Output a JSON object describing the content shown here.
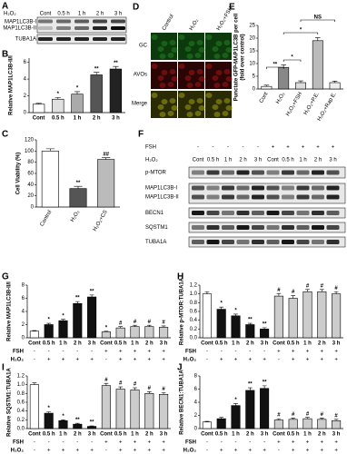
{
  "chart_data": [
    {
      "type": "bar",
      "label": "B",
      "ylabel": "Relative MAP1LC3B-II/I",
      "categories": [
        "Cont",
        "0.5 h",
        "1 h",
        "2 h",
        "3 h"
      ],
      "values": [
        1,
        1.6,
        2.2,
        4.5,
        5.2
      ],
      "errors": [
        0.1,
        0.2,
        0.3,
        0.3,
        0.3
      ],
      "annotations": [
        null,
        "*",
        "*",
        "**",
        "**"
      ],
      "colors": [
        "#ffffff",
        "#e0e0e0",
        "#aaaaaa",
        "#555555",
        "#222222"
      ],
      "ylim": [
        0,
        6.5
      ],
      "yticks": [
        0,
        2,
        4,
        6
      ]
    },
    {
      "type": "bar",
      "label": "C",
      "ylabel": "Cell Viability (%)",
      "categories": [
        "Control",
        "H₂O₂",
        "H₂O₂+CS"
      ],
      "rotate_labels": true,
      "values": [
        100,
        33,
        85
      ],
      "errors": [
        4,
        4,
        3
      ],
      "annotations": [
        null,
        "**",
        "##"
      ],
      "colors": [
        "#ffffff",
        "#555555",
        "#bbbbbb"
      ],
      "ylim": [
        0,
        120
      ],
      "yticks": [
        0,
        20,
        40,
        60,
        80,
        100,
        120
      ]
    },
    {
      "type": "bar",
      "label": "E",
      "ylabel": [
        "Punctate GFP-MAP1LC3B per cell",
        "(fold over control)"
      ],
      "categories": [
        "Cont",
        "H₂O₂",
        "H₂O₂+FSH",
        "H₂O₂+P.E.",
        "H₂O₂+Rap E."
      ],
      "rotate_labels": true,
      "values": [
        1,
        8.5,
        2.5,
        19,
        2.5
      ],
      "errors": [
        0.5,
        1,
        0.7,
        1.2,
        0.6
      ],
      "annotations": [
        null,
        null,
        null,
        null,
        null
      ],
      "brackets": [
        "**",
        "*",
        "*",
        "NS"
      ],
      "colors": [
        "#ffffff",
        "#888888",
        "#dddddd",
        "#bbbbbb",
        "#eeeeee"
      ],
      "ylim": [
        0,
        25
      ],
      "yticks": [
        0,
        5,
        10,
        15,
        20,
        25
      ]
    },
    {
      "type": "bar",
      "label": "G",
      "ylabel": "Relative MAP1LC3B-II/I",
      "categories": [
        "Cont",
        "0.5 h",
        "1 h",
        "2 h",
        "3 h",
        "Cont",
        "0.5 h",
        "1 h",
        "2 h",
        "3 h"
      ],
      "values": [
        1,
        2,
        2.6,
        5.2,
        6.2,
        0.9,
        1.5,
        1.7,
        1.7,
        1.6
      ],
      "errors": [
        0.1,
        0.2,
        0.2,
        0.3,
        0.3,
        0.1,
        0.2,
        0.2,
        0.2,
        0.2
      ],
      "annotations": [
        null,
        "*",
        "*",
        "**",
        "**",
        "*",
        "#",
        "#",
        "#",
        "#"
      ],
      "colors": [
        "#ffffff",
        "#111111",
        "#111111",
        "#111111",
        "#111111",
        "#cccccc",
        "#cccccc",
        "#cccccc",
        "#cccccc",
        "#cccccc"
      ],
      "ylim": [
        0,
        8
      ],
      "yticks": [
        0,
        2,
        4,
        6,
        8
      ],
      "rows": [
        {
          "name": "FSH",
          "values": [
            "-",
            "-",
            "-",
            "-",
            "-",
            "+",
            "+",
            "+",
            "+",
            "+"
          ]
        },
        {
          "name": "H₂O₂",
          "values": [
            "-",
            "+",
            "+",
            "+",
            "+",
            "-",
            "+",
            "+",
            "+",
            "+"
          ]
        }
      ]
    },
    {
      "type": "bar",
      "label": "H",
      "ylabel": "Relative p-MTOR:TUBA1A",
      "categories": [
        "Cont",
        "0.5 h",
        "1 h",
        "2 h",
        "3 h",
        "Cont",
        "0.5 h",
        "1 h",
        "2 h",
        "3 h"
      ],
      "values": [
        1,
        0.65,
        0.5,
        0.3,
        0.2,
        0.95,
        0.9,
        1.05,
        1.05,
        1.0
      ],
      "errors": [
        0.05,
        0.05,
        0.04,
        0.03,
        0.03,
        0.06,
        0.06,
        0.05,
        0.05,
        0.05
      ],
      "annotations": [
        null,
        "*",
        "*",
        "**",
        "**",
        "#",
        "#",
        "#",
        "#",
        "#"
      ],
      "colors": [
        "#ffffff",
        "#111111",
        "#111111",
        "#111111",
        "#111111",
        "#cccccc",
        "#cccccc",
        "#cccccc",
        "#cccccc",
        "#cccccc"
      ],
      "ylim": [
        0,
        1.2
      ],
      "yticks": [
        {
          "value": 0,
          "label": "0.0"
        },
        0.2,
        0.4,
        0.6,
        0.8,
        {
          "value": 1,
          "label": "1.0"
        },
        1.2
      ],
      "rows": [
        {
          "name": "FSH",
          "values": [
            "-",
            "-",
            "-",
            "-",
            "-",
            "+",
            "+",
            "+",
            "+",
            "+"
          ]
        },
        {
          "name": "H₂O₂",
          "values": [
            "-",
            "+",
            "+",
            "+",
            "+",
            "-",
            "+",
            "+",
            "+",
            "+"
          ]
        }
      ]
    },
    {
      "type": "bar",
      "label": "I",
      "ylabel": "Relative SQSTM1:TUBA1A",
      "categories": [
        "Cont",
        "0.5 h",
        "1 h",
        "2 h",
        "3 h",
        "Cont",
        "0.5 h",
        "1 h",
        "2 h",
        "3 h"
      ],
      "values": [
        1.0,
        0.35,
        0.18,
        0.1,
        0.05,
        0.98,
        0.9,
        0.88,
        0.8,
        0.78
      ],
      "errors": [
        0.04,
        0.03,
        0.02,
        0.02,
        0.01,
        0.05,
        0.05,
        0.05,
        0.04,
        0.04
      ],
      "annotations": [
        null,
        "*",
        "*",
        "**",
        "**",
        "#",
        "#",
        "#",
        "#",
        "#"
      ],
      "colors": [
        "#ffffff",
        "#111111",
        "#111111",
        "#111111",
        "#111111",
        "#cccccc",
        "#cccccc",
        "#cccccc",
        "#cccccc",
        "#cccccc"
      ],
      "ylim": [
        0,
        1.2
      ],
      "yticks": [
        {
          "value": 0,
          "label": "0.0"
        },
        0.2,
        0.4,
        0.6,
        0.8,
        {
          "value": 1,
          "label": "1.0"
        },
        1.2
      ],
      "rows": [
        {
          "name": "FSH",
          "values": [
            "-",
            "-",
            "-",
            "-",
            "-",
            "+",
            "+",
            "+",
            "+",
            "+"
          ]
        },
        {
          "name": "H₂O₂",
          "values": [
            "-",
            "+",
            "+",
            "+",
            "+",
            "-",
            "+",
            "+",
            "+",
            "+"
          ]
        }
      ]
    },
    {
      "type": "bar",
      "label": "J",
      "ylabel": "Relative BECN1:TUBA1A",
      "categories": [
        "Cont",
        "0.5 h",
        "1 h",
        "2 h",
        "3 h",
        "Cont",
        "0.5 h",
        "1 h",
        "2 h",
        "3 h"
      ],
      "values": [
        1,
        1.5,
        3.5,
        5.8,
        6.1,
        1.3,
        1.4,
        1.5,
        1.4,
        1.2
      ],
      "errors": [
        0.1,
        0.2,
        0.3,
        0.4,
        0.4,
        0.2,
        0.2,
        0.2,
        0.2,
        0.2
      ],
      "annotations": [
        null,
        null,
        "*",
        "**",
        "**",
        "#",
        "#",
        "#",
        "#",
        "#"
      ],
      "colors": [
        "#ffffff",
        "#111111",
        "#111111",
        "#111111",
        "#111111",
        "#cccccc",
        "#cccccc",
        "#cccccc",
        "#cccccc",
        "#cccccc"
      ],
      "ylim": [
        0,
        8
      ],
      "yticks": [
        0,
        2,
        4,
        6,
        8
      ],
      "rows": [
        {
          "name": "FSH",
          "values": [
            "-",
            "-",
            "-",
            "-",
            "-",
            "+",
            "+",
            "+",
            "+",
            "+"
          ]
        },
        {
          "name": "H₂O₂",
          "values": [
            "-",
            "+",
            "+",
            "+",
            "+",
            "-",
            "+",
            "+",
            "+",
            "+"
          ]
        }
      ]
    }
  ],
  "blot_a": {
    "label": "A",
    "treatment": "H₂O₂",
    "columns": [
      "Cont",
      "0.5 h",
      "1 h",
      "2 h",
      "3 h"
    ],
    "rows": [
      "MAP1LC3B-I",
      "MAP1LC3B-II",
      "TUBA1A"
    ]
  },
  "micrograph_d": {
    "label": "D",
    "columns": [
      "Control",
      "H₂O₂",
      "H₂O₂+FSH"
    ],
    "rows": [
      "GC",
      "AVOs",
      "Merge"
    ]
  },
  "blot_f": {
    "label": "F",
    "treatments": [
      {
        "name": "FSH",
        "values": [
          "-",
          "-",
          "-",
          "-",
          "-",
          "+",
          "+",
          "+",
          "+",
          "+"
        ]
      },
      {
        "name": "H₂O₂",
        "values": [
          "Cont",
          "0.5 h",
          "1 h",
          "2 h",
          "3 h",
          "Cont",
          "0.5 h",
          "1 h",
          "2 h",
          "3 h"
        ]
      }
    ],
    "rows": [
      "p-MTOR",
      "MAP1LC3B-I",
      "MAP1LC3B-II",
      "BECN1",
      "SQSTM1",
      "TUBA1A"
    ]
  }
}
